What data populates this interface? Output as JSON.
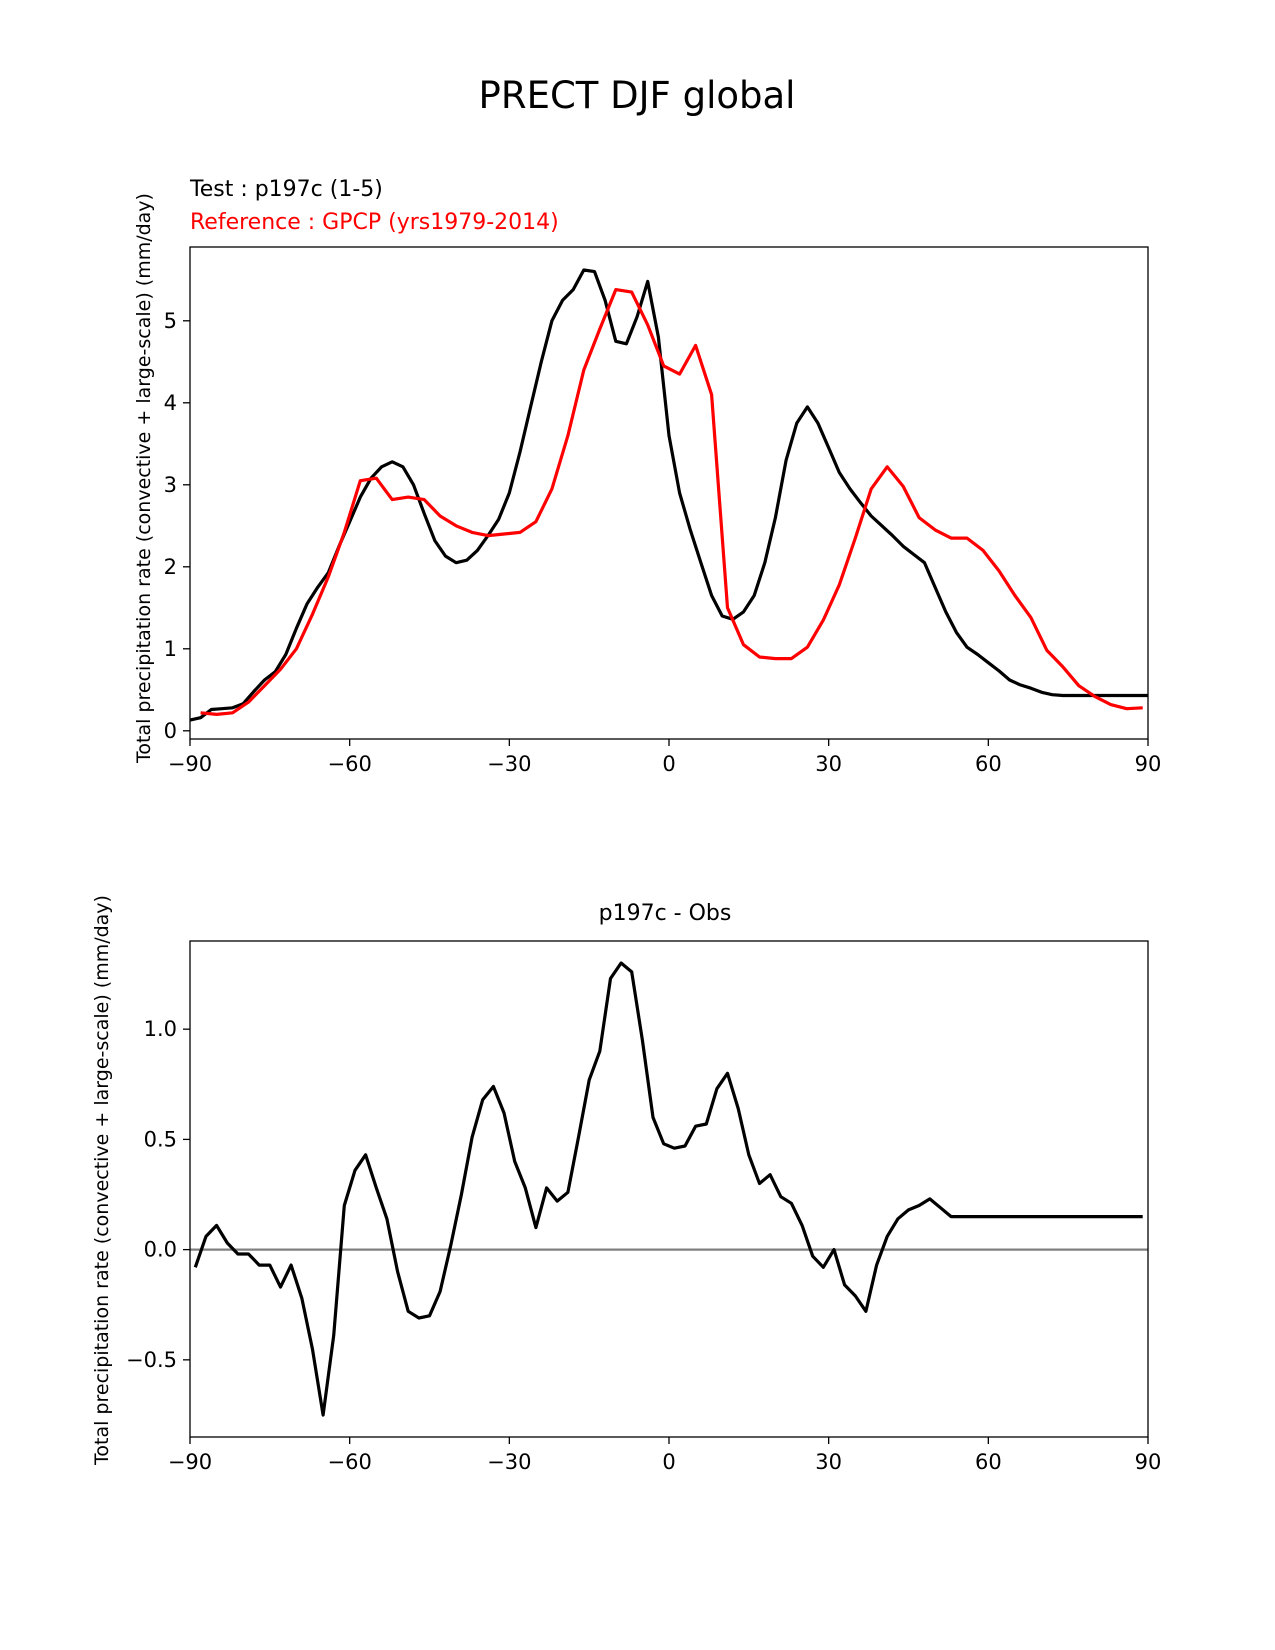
{
  "figure": {
    "title": "PRECT DJF global"
  },
  "chart_data": [
    {
      "type": "line",
      "test_label": "Test : p197c (1-5)",
      "reference_label": "Reference : GPCP (yrs1979-2014)",
      "xlabel": "",
      "ylabel": "Total precipitation rate (convective + large-scale) (mm/day)",
      "xlim": [
        -90,
        90
      ],
      "ylim": [
        -0.1,
        5.9
      ],
      "xticks": [
        -90,
        -60,
        -30,
        0,
        30,
        60,
        90
      ],
      "xtick_labels": [
        "−90",
        "−60",
        "−30",
        "0",
        "30",
        "60",
        "90"
      ],
      "yticks": [
        0,
        1,
        2,
        3,
        4,
        5
      ],
      "ytick_labels": [
        "0",
        "1",
        "2",
        "3",
        "4",
        "5"
      ],
      "grid": false,
      "series": [
        {
          "color": "#000000",
          "x": [
            -90,
            -88,
            -86,
            -84,
            -82,
            -80,
            -78,
            -76,
            -74,
            -72,
            -70,
            -68,
            -66,
            -64,
            -62,
            -60,
            -58,
            -56,
            -54,
            -52,
            -50,
            -48,
            -46,
            -44,
            -42,
            -40,
            -38,
            -36,
            -34,
            -32,
            -30,
            -28,
            -26,
            -24,
            -22,
            -20,
            -18,
            -16,
            -14,
            -12,
            -10,
            -8,
            -6,
            -4,
            -2,
            0,
            2,
            4,
            6,
            8,
            10,
            12,
            14,
            16,
            18,
            20,
            22,
            24,
            26,
            28,
            30,
            32,
            34,
            36,
            38,
            40,
            42,
            44,
            46,
            48,
            50,
            52,
            54,
            56,
            58,
            60,
            62,
            64,
            66,
            68,
            70,
            72,
            74,
            76,
            78,
            80,
            82,
            84,
            86,
            88,
            90
          ],
          "y": [
            0.13,
            0.16,
            0.26,
            0.27,
            0.28,
            0.33,
            0.48,
            0.62,
            0.72,
            0.93,
            1.25,
            1.55,
            1.75,
            1.93,
            2.25,
            2.55,
            2.85,
            3.08,
            3.22,
            3.28,
            3.22,
            3.0,
            2.65,
            2.32,
            2.13,
            2.05,
            2.08,
            2.2,
            2.38,
            2.58,
            2.9,
            3.4,
            3.95,
            4.5,
            5.0,
            5.25,
            5.38,
            5.62,
            5.6,
            5.25,
            4.75,
            4.72,
            5.05,
            5.48,
            4.8,
            3.6,
            2.9,
            2.45,
            2.05,
            1.65,
            1.4,
            1.36,
            1.45,
            1.65,
            2.05,
            2.6,
            3.3,
            3.75,
            3.95,
            3.75,
            3.45,
            3.15,
            2.95,
            2.78,
            2.62,
            2.5,
            2.38,
            2.25,
            2.15,
            2.05,
            1.75,
            1.45,
            1.2,
            1.02,
            0.93,
            0.83,
            0.73,
            0.62,
            0.56,
            0.52,
            0.47,
            0.44,
            0.43,
            0.43,
            0.43,
            0.43,
            0.43,
            0.43,
            0.43,
            0.43,
            0.43
          ]
        },
        {
          "color": "#ff0000",
          "x": [
            -88,
            -85,
            -82,
            -79,
            -76,
            -73,
            -70,
            -67,
            -64,
            -61,
            -58,
            -55,
            -52,
            -49,
            -46,
            -43,
            -40,
            -37,
            -34,
            -31,
            -28,
            -25,
            -22,
            -19,
            -16,
            -13,
            -10,
            -7,
            -4,
            -1,
            2,
            5,
            8,
            11,
            14,
            17,
            20,
            23,
            26,
            29,
            32,
            35,
            38,
            41,
            44,
            47,
            50,
            53,
            56,
            59,
            62,
            65,
            68,
            71,
            74,
            77,
            80,
            83,
            86,
            89
          ],
          "y": [
            0.22,
            0.2,
            0.22,
            0.35,
            0.55,
            0.75,
            1.0,
            1.42,
            1.88,
            2.42,
            3.05,
            3.08,
            2.82,
            2.85,
            2.82,
            2.62,
            2.5,
            2.42,
            2.38,
            2.4,
            2.42,
            2.55,
            2.95,
            3.6,
            4.4,
            4.9,
            5.38,
            5.35,
            4.95,
            4.45,
            4.35,
            4.7,
            4.1,
            1.5,
            1.05,
            0.9,
            0.88,
            0.88,
            1.02,
            1.35,
            1.78,
            2.35,
            2.95,
            3.22,
            2.98,
            2.6,
            2.45,
            2.35,
            2.35,
            2.2,
            1.95,
            1.65,
            1.38,
            0.98,
            0.78,
            0.55,
            0.42,
            0.32,
            0.27,
            0.28
          ]
        }
      ]
    },
    {
      "type": "line",
      "title": "p197c - Obs",
      "xlabel": "",
      "ylabel": "Total precipitation rate (convective + large-scale) (mm/day)",
      "xlim": [
        -90,
        90
      ],
      "ylim": [
        -0.85,
        1.4
      ],
      "xticks": [
        -90,
        -60,
        -30,
        0,
        30,
        60,
        90
      ],
      "xtick_labels": [
        "−90",
        "−60",
        "−30",
        "0",
        "30",
        "60",
        "90"
      ],
      "yticks": [
        -0.5,
        0.0,
        0.5,
        1.0
      ],
      "ytick_labels": [
        "−0.5",
        "0.0",
        "0.5",
        "1.0"
      ],
      "grid": false,
      "zero_line": {
        "y": 0,
        "color": "#808080"
      },
      "series": [
        {
          "color": "#000000",
          "x": [
            -89,
            -87,
            -85,
            -83,
            -81,
            -79,
            -77,
            -75,
            -73,
            -71,
            -69,
            -67,
            -65,
            -63,
            -61,
            -59,
            -57,
            -55,
            -53,
            -51,
            -49,
            -47,
            -45,
            -43,
            -41,
            -39,
            -37,
            -35,
            -33,
            -31,
            -29,
            -27,
            -25,
            -23,
            -21,
            -19,
            -17,
            -15,
            -13,
            -11,
            -9,
            -7,
            -5,
            -3,
            -1,
            1,
            3,
            5,
            7,
            9,
            11,
            13,
            15,
            17,
            19,
            21,
            23,
            25,
            27,
            29,
            31,
            33,
            35,
            37,
            39,
            41,
            43,
            45,
            47,
            49,
            51,
            53,
            55,
            57,
            59,
            61,
            63,
            65,
            67,
            69,
            71,
            73,
            75,
            77,
            79,
            81,
            83,
            85,
            87,
            89
          ],
          "y": [
            -0.08,
            0.06,
            0.11,
            0.03,
            -0.02,
            -0.02,
            -0.07,
            -0.07,
            -0.17,
            -0.07,
            -0.22,
            -0.45,
            -0.75,
            -0.39,
            0.2,
            0.36,
            0.43,
            0.28,
            0.14,
            -0.1,
            -0.28,
            -0.31,
            -0.3,
            -0.19,
            0.02,
            0.25,
            0.51,
            0.68,
            0.74,
            0.62,
            0.4,
            0.28,
            0.1,
            0.28,
            0.22,
            0.26,
            0.51,
            0.77,
            0.9,
            1.23,
            1.3,
            1.26,
            0.95,
            0.6,
            0.48,
            0.46,
            0.47,
            0.56,
            0.57,
            0.73,
            0.8,
            0.64,
            0.43,
            0.3,
            0.34,
            0.24,
            0.21,
            0.11,
            -0.03,
            -0.08,
            0.0,
            -0.16,
            -0.21,
            -0.28,
            -0.07,
            0.06,
            0.14,
            0.18,
            0.2,
            0.23,
            0.19,
            0.15,
            0.15,
            0.15,
            0.15,
            0.15,
            0.15,
            0.15,
            0.15,
            0.15,
            0.15,
            0.15,
            0.15,
            0.15,
            0.15,
            0.15,
            0.15,
            0.15,
            0.15,
            0.15
          ]
        }
      ]
    }
  ]
}
